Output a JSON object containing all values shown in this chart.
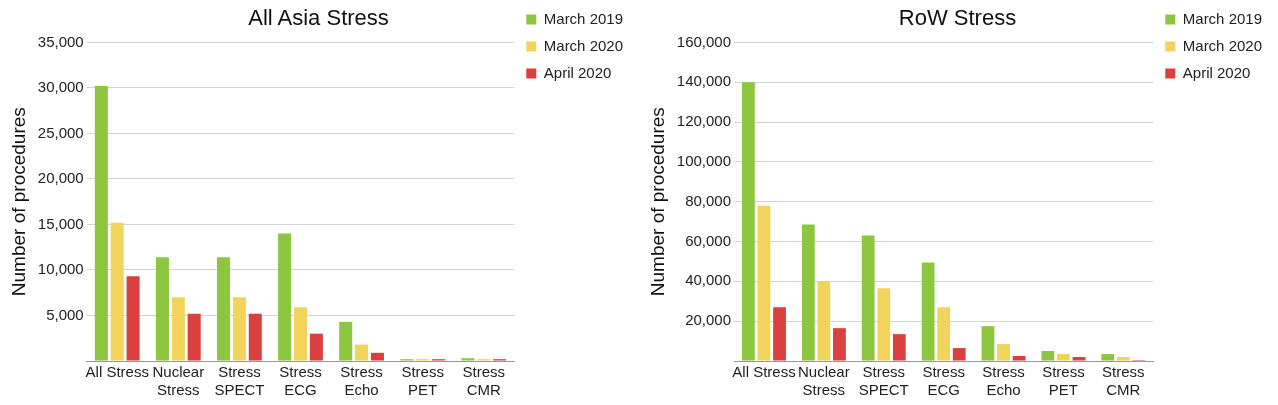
{
  "chart_data": [
    {
      "type": "bar",
      "title": "All Asia Stress",
      "ylabel": "Number of procedures",
      "categories": [
        "All Stress",
        "Nuclear\nStress",
        "Stress\nSPECT",
        "Stress\nECG",
        "Stress\nEcho",
        "Stress\nPET",
        "Stress\nCMR"
      ],
      "series": [
        {
          "name": "March 2019",
          "color": "#8dc63f",
          "values": [
            30200,
            11400,
            11400,
            14000,
            4300,
            200,
            300
          ]
        },
        {
          "name": "March 2020",
          "color": "#f2d45c",
          "values": [
            15200,
            7000,
            7000,
            5900,
            1800,
            200,
            200
          ]
        },
        {
          "name": "April 2020",
          "color": "#d9403f",
          "values": [
            9300,
            5200,
            5200,
            3000,
            900,
            200,
            200
          ]
        }
      ],
      "ylim": [
        0,
        35000
      ],
      "yticks": [
        {
          "value": 0,
          "label": null
        },
        {
          "value": 5000,
          "label": "5,000"
        },
        {
          "value": 10000,
          "label": "10,000"
        },
        {
          "value": 15000,
          "label": "15,000"
        },
        {
          "value": 20000,
          "label": "20,000"
        },
        {
          "value": 25000,
          "label": "25,000"
        },
        {
          "value": 30000,
          "label": "30,000"
        },
        {
          "value": 35000,
          "label": "35,000"
        }
      ],
      "grid": "y",
      "legend": "top right"
    },
    {
      "type": "bar",
      "title": "RoW Stress",
      "ylabel": "Number of procedures",
      "categories": [
        "All Stress",
        "Nuclear\nStress",
        "Stress\nSPECT",
        "Stress\nECG",
        "Stress\nEcho",
        "Stress\nPET",
        "Stress\nCMR"
      ],
      "series": [
        {
          "name": "March 2019",
          "color": "#8dc63f",
          "values": [
            140000,
            68500,
            63000,
            49500,
            17500,
            5000,
            3500
          ]
        },
        {
          "name": "March 2020",
          "color": "#f2d45c",
          "values": [
            78000,
            40000,
            36500,
            27000,
            8500,
            3500,
            2000
          ]
        },
        {
          "name": "April 2020",
          "color": "#d9403f",
          "values": [
            27000,
            16500,
            13500,
            6500,
            2500,
            2000,
            500
          ]
        }
      ],
      "ylim": [
        0,
        160000
      ],
      "yticks": [
        {
          "value": 0,
          "label": null
        },
        {
          "value": 20000,
          "label": "20,000"
        },
        {
          "value": 40000,
          "label": "40,000"
        },
        {
          "value": 60000,
          "label": "60,000"
        },
        {
          "value": 80000,
          "label": "80,000"
        },
        {
          "value": 100000,
          "label": "100,000"
        },
        {
          "value": 120000,
          "label": "120,000"
        },
        {
          "value": 140000,
          "label": "140,000"
        },
        {
          "value": 160000,
          "label": "160,000"
        }
      ],
      "grid": "y",
      "legend": "top right"
    }
  ]
}
